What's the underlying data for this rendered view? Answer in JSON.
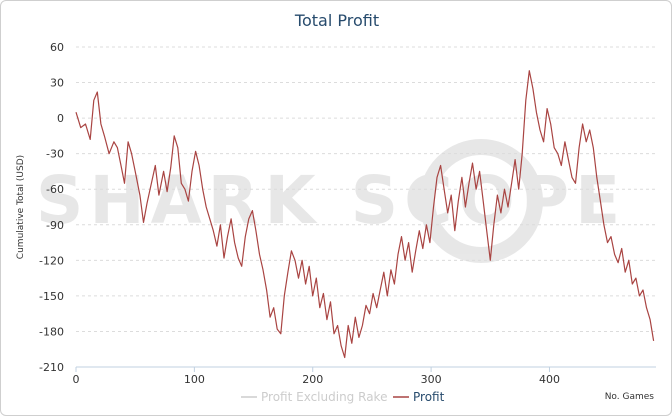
{
  "chart_data": {
    "type": "line",
    "title": "Total Profit",
    "xlabel": "No. Games",
    "ylabel": "Cumulative Total (USD)",
    "xlim": [
      0,
      490
    ],
    "ylim": [
      -210,
      60
    ],
    "x_ticks": [
      0,
      100,
      200,
      300,
      400
    ],
    "y_ticks": [
      60,
      30,
      0,
      -30,
      -60,
      -90,
      -120,
      -150,
      -180,
      -210
    ],
    "grid": true,
    "legend_position": "bottom-center",
    "watermark": "SHARK SCOPE",
    "series": [
      {
        "name": "Profit Excluding Rake",
        "color": "#cccccc",
        "visible": false,
        "points": []
      },
      {
        "name": "Profit",
        "color": "#a94442",
        "visible": true,
        "points": [
          [
            0,
            5
          ],
          [
            4,
            -8
          ],
          [
            8,
            -5
          ],
          [
            12,
            -18
          ],
          [
            15,
            15
          ],
          [
            18,
            22
          ],
          [
            21,
            -5
          ],
          [
            24,
            -15
          ],
          [
            28,
            -30
          ],
          [
            32,
            -20
          ],
          [
            35,
            -25
          ],
          [
            38,
            -40
          ],
          [
            41,
            -55
          ],
          [
            44,
            -20
          ],
          [
            47,
            -30
          ],
          [
            50,
            -45
          ],
          [
            54,
            -65
          ],
          [
            57,
            -88
          ],
          [
            60,
            -72
          ],
          [
            63,
            -58
          ],
          [
            67,
            -40
          ],
          [
            70,
            -65
          ],
          [
            74,
            -45
          ],
          [
            77,
            -62
          ],
          [
            80,
            -42
          ],
          [
            83,
            -15
          ],
          [
            86,
            -25
          ],
          [
            89,
            -55
          ],
          [
            92,
            -60
          ],
          [
            95,
            -70
          ],
          [
            98,
            -45
          ],
          [
            101,
            -28
          ],
          [
            104,
            -40
          ],
          [
            107,
            -60
          ],
          [
            110,
            -75
          ],
          [
            113,
            -85
          ],
          [
            116,
            -95
          ],
          [
            119,
            -108
          ],
          [
            122,
            -90
          ],
          [
            125,
            -118
          ],
          [
            128,
            -100
          ],
          [
            131,
            -85
          ],
          [
            134,
            -105
          ],
          [
            137,
            -118
          ],
          [
            140,
            -125
          ],
          [
            143,
            -100
          ],
          [
            146,
            -85
          ],
          [
            149,
            -78
          ],
          [
            152,
            -95
          ],
          [
            155,
            -115
          ],
          [
            158,
            -128
          ],
          [
            161,
            -145
          ],
          [
            164,
            -168
          ],
          [
            167,
            -160
          ],
          [
            170,
            -178
          ],
          [
            173,
            -182
          ],
          [
            176,
            -150
          ],
          [
            179,
            -130
          ],
          [
            182,
            -112
          ],
          [
            185,
            -120
          ],
          [
            188,
            -135
          ],
          [
            191,
            -120
          ],
          [
            194,
            -140
          ],
          [
            197,
            -125
          ],
          [
            200,
            -150
          ],
          [
            203,
            -135
          ],
          [
            206,
            -160
          ],
          [
            209,
            -148
          ],
          [
            212,
            -170
          ],
          [
            215,
            -155
          ],
          [
            218,
            -182
          ],
          [
            221,
            -175
          ],
          [
            224,
            -192
          ],
          [
            227,
            -202
          ],
          [
            230,
            -175
          ],
          [
            233,
            -190
          ],
          [
            236,
            -168
          ],
          [
            239,
            -185
          ],
          [
            242,
            -175
          ],
          [
            245,
            -158
          ],
          [
            248,
            -165
          ],
          [
            251,
            -148
          ],
          [
            254,
            -160
          ],
          [
            257,
            -145
          ],
          [
            260,
            -130
          ],
          [
            263,
            -150
          ],
          [
            266,
            -128
          ],
          [
            269,
            -140
          ],
          [
            272,
            -115
          ],
          [
            275,
            -100
          ],
          [
            278,
            -120
          ],
          [
            281,
            -105
          ],
          [
            284,
            -130
          ],
          [
            287,
            -112
          ],
          [
            290,
            -95
          ],
          [
            293,
            -110
          ],
          [
            296,
            -90
          ],
          [
            299,
            -105
          ],
          [
            302,
            -75
          ],
          [
            305,
            -50
          ],
          [
            308,
            -40
          ],
          [
            311,
            -60
          ],
          [
            314,
            -80
          ],
          [
            317,
            -65
          ],
          [
            320,
            -95
          ],
          [
            323,
            -70
          ],
          [
            326,
            -50
          ],
          [
            329,
            -75
          ],
          [
            332,
            -55
          ],
          [
            335,
            -38
          ],
          [
            338,
            -60
          ],
          [
            341,
            -45
          ],
          [
            344,
            -70
          ],
          [
            347,
            -95
          ],
          [
            350,
            -120
          ],
          [
            353,
            -90
          ],
          [
            356,
            -65
          ],
          [
            359,
            -80
          ],
          [
            362,
            -60
          ],
          [
            365,
            -75
          ],
          [
            368,
            -55
          ],
          [
            371,
            -35
          ],
          [
            374,
            -60
          ],
          [
            377,
            -30
          ],
          [
            380,
            15
          ],
          [
            383,
            40
          ],
          [
            386,
            25
          ],
          [
            389,
            5
          ],
          [
            392,
            -10
          ],
          [
            395,
            -20
          ],
          [
            398,
            8
          ],
          [
            401,
            -5
          ],
          [
            404,
            -25
          ],
          [
            407,
            -30
          ],
          [
            410,
            -40
          ],
          [
            413,
            -20
          ],
          [
            416,
            -35
          ],
          [
            419,
            -50
          ],
          [
            422,
            -55
          ],
          [
            425,
            -25
          ],
          [
            428,
            -5
          ],
          [
            431,
            -20
          ],
          [
            434,
            -10
          ],
          [
            437,
            -25
          ],
          [
            440,
            -50
          ],
          [
            443,
            -70
          ],
          [
            446,
            -90
          ],
          [
            449,
            -105
          ],
          [
            452,
            -100
          ],
          [
            455,
            -115
          ],
          [
            458,
            -122
          ],
          [
            461,
            -110
          ],
          [
            464,
            -130
          ],
          [
            467,
            -120
          ],
          [
            470,
            -140
          ],
          [
            473,
            -135
          ],
          [
            476,
            -150
          ],
          [
            479,
            -145
          ],
          [
            482,
            -160
          ],
          [
            485,
            -170
          ],
          [
            488,
            -188
          ]
        ]
      }
    ]
  }
}
